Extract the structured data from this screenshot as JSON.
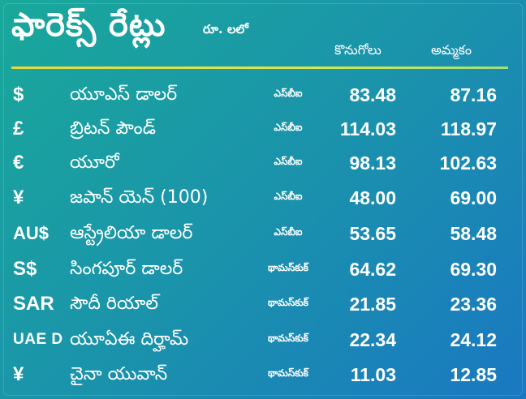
{
  "header": {
    "title": "ఫారెక్స్ రేట్లు",
    "unit": "రూ. లలో",
    "buy_label": "కొనుగోలు",
    "sell_label": "అమ్మకం"
  },
  "colors": {
    "background_start": "#19a89a",
    "background_end": "#1a78c2",
    "divider": "#e8d93a",
    "text": "#ffffff"
  },
  "rows": [
    {
      "symbol": "$",
      "name": "యూఎస్ డాలర్",
      "source": "ఎస్‌బీఐ",
      "buy": "83.48",
      "sell": "87.16"
    },
    {
      "symbol": "£",
      "name": "బ్రిటన్ పౌండ్",
      "source": "ఎస్‌బీఐ",
      "buy": "114.03",
      "sell": "118.97"
    },
    {
      "symbol": "€",
      "name": "యూరో",
      "source": "ఎస్‌బీఐ",
      "buy": "98.13",
      "sell": "102.63"
    },
    {
      "symbol": "¥",
      "name": "జపాన్ యెన్ (100)",
      "source": "ఎస్‌బీఐ",
      "buy": "48.00",
      "sell": "69.00"
    },
    {
      "symbol": "AU$",
      "name": "ఆస్ట్రేలియా డాలర్",
      "source": "ఎస్‌బీఐ",
      "buy": "53.65",
      "sell": "58.48"
    },
    {
      "symbol": "S$",
      "name": "సింగపూర్ డాలర్",
      "source": "థామస్‌కుక్",
      "buy": "64.62",
      "sell": "69.30"
    },
    {
      "symbol": "SAR",
      "name": "సౌదీ రియాల్",
      "source": "థామస్‌కుక్",
      "buy": "21.85",
      "sell": "23.36"
    },
    {
      "symbol": "UAE D",
      "name": "యూఏఈ దిర్హామ్",
      "source": "థామస్‌కుక్",
      "buy": "22.34",
      "sell": "24.12"
    },
    {
      "symbol": "¥",
      "name": "చైనా యువాన్",
      "source": "థామస్‌కుక్",
      "buy": "11.03",
      "sell": "12.85"
    }
  ]
}
